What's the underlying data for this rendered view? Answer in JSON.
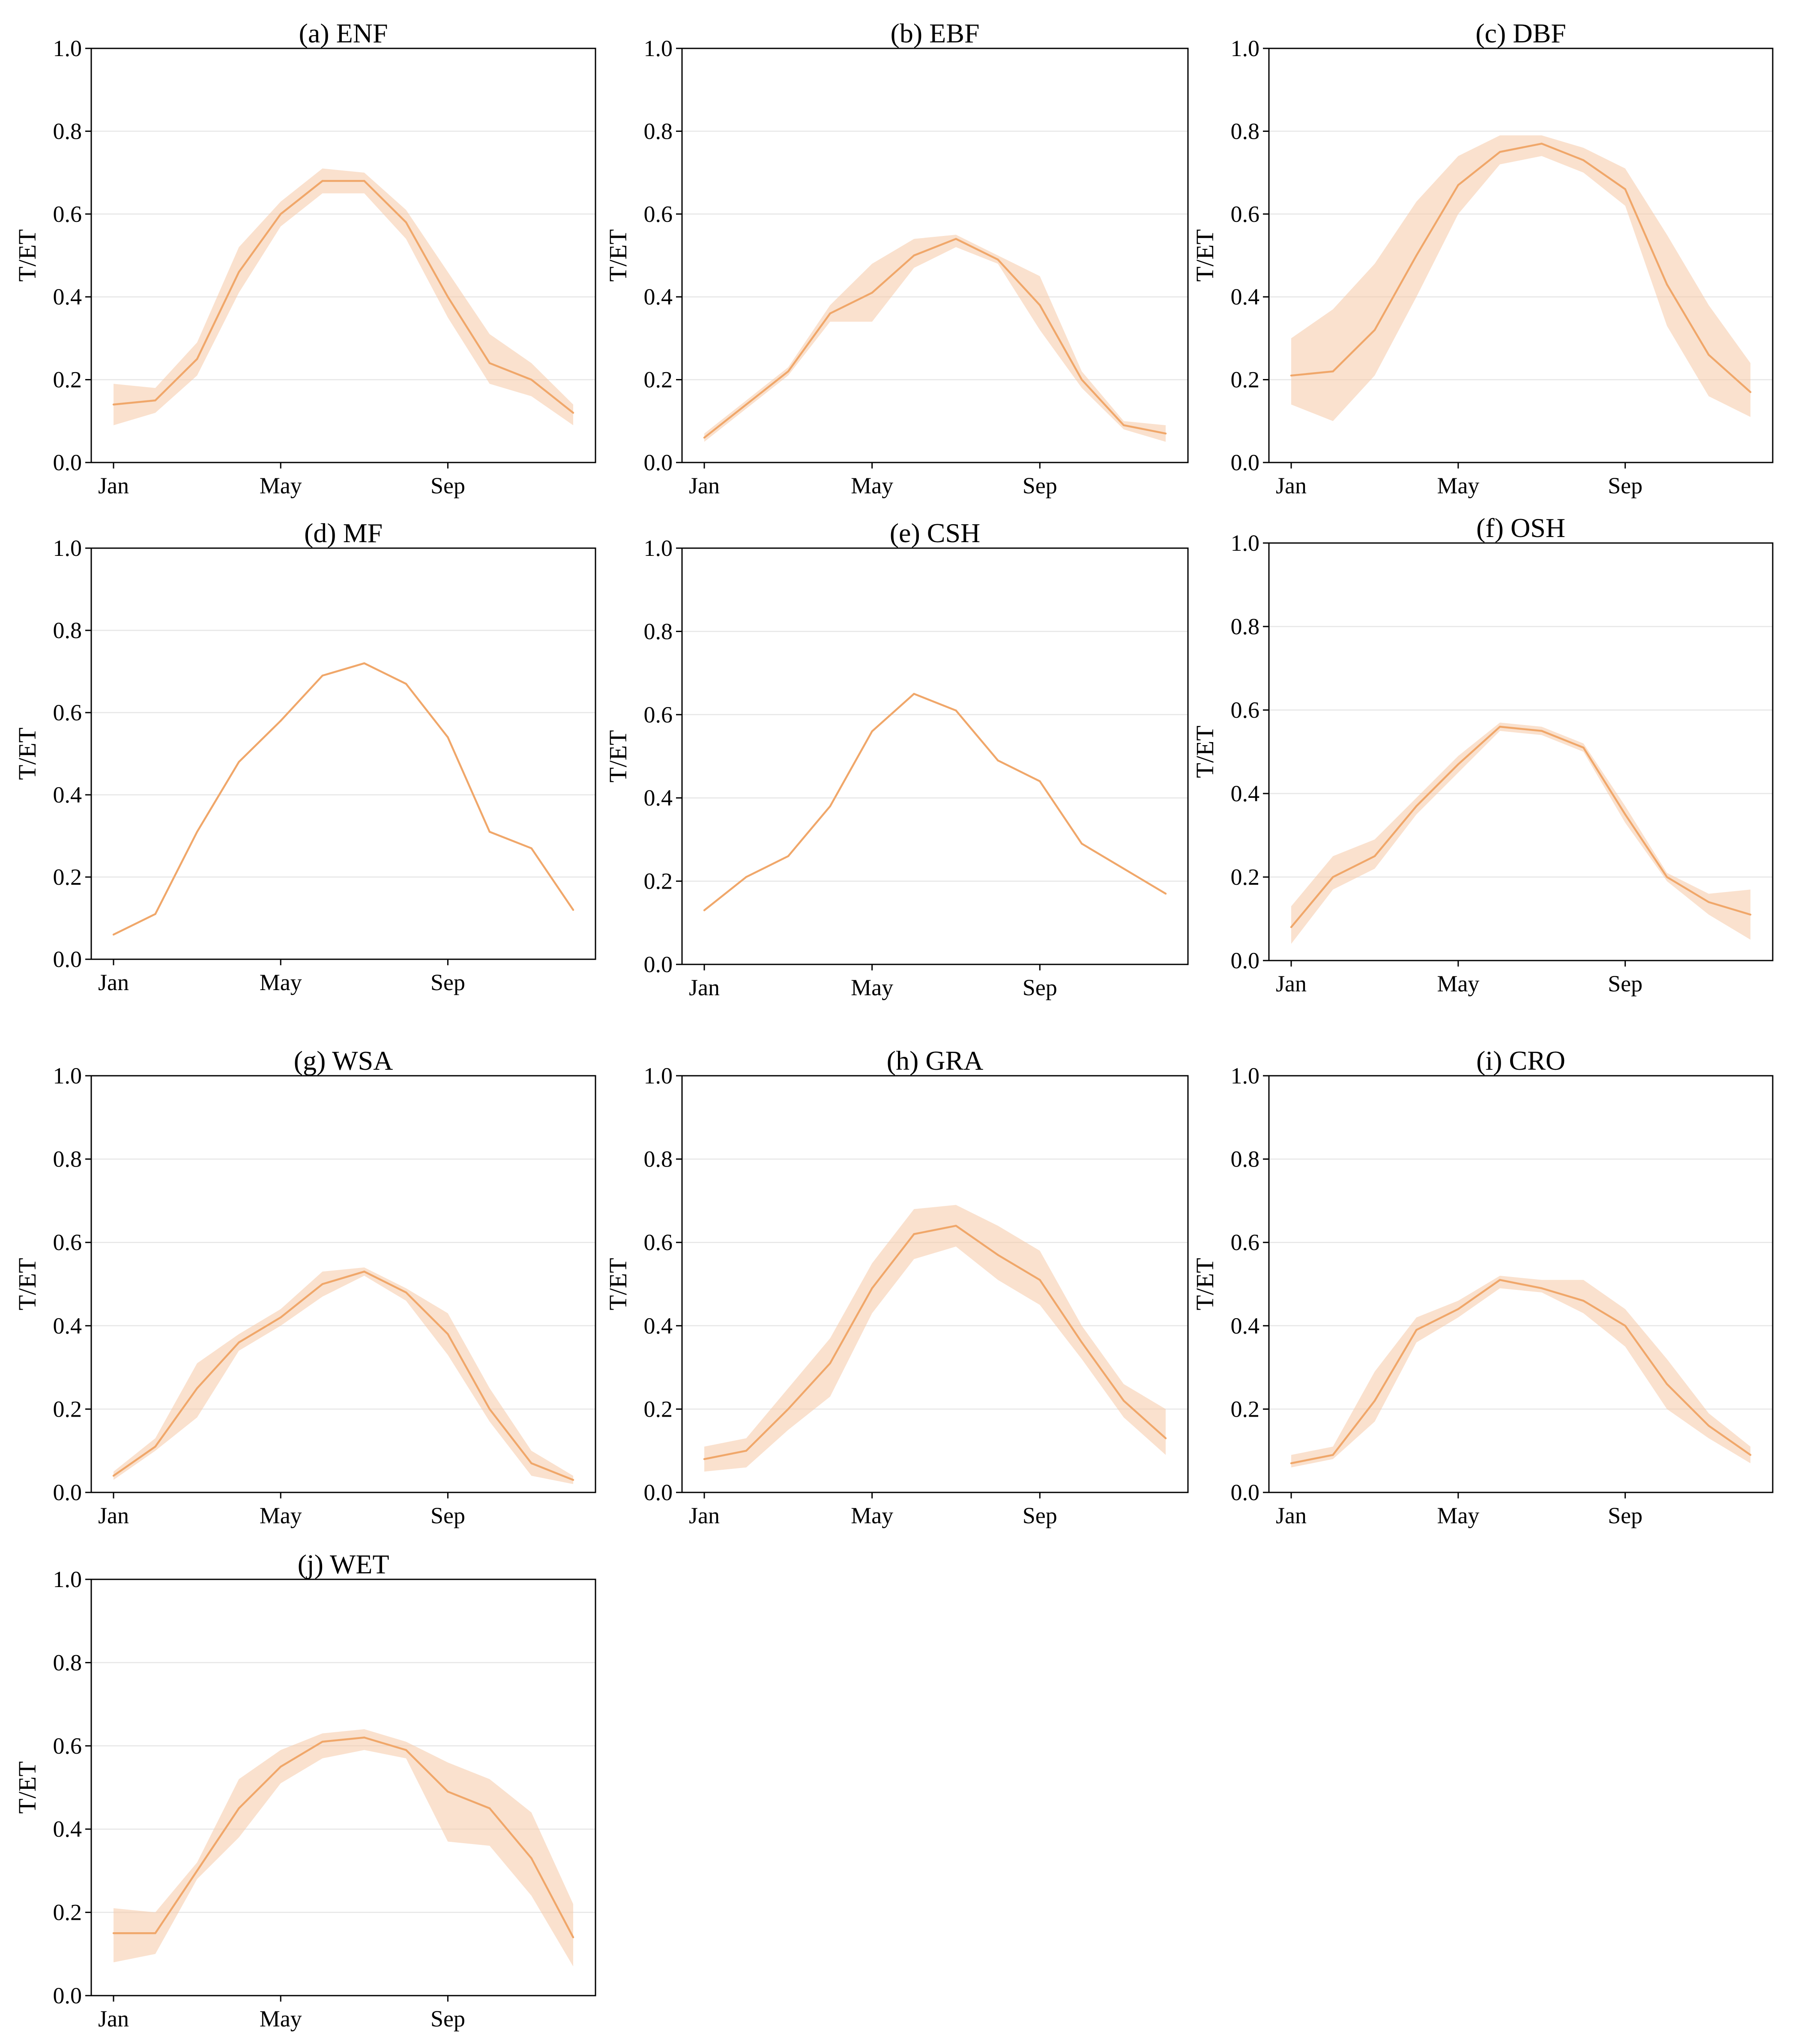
{
  "colors": {
    "line": "#f0a76a",
    "band": "#f6c9a6",
    "band_opacity": 0.55,
    "grid": "#e6e6e6"
  },
  "chart_data": [
    {
      "type": "line",
      "title": "(a) ENF",
      "ylabel": "T/ET",
      "ylim": [
        0,
        1
      ],
      "grid": "horizontal",
      "x": [
        1,
        2,
        3,
        4,
        5,
        6,
        7,
        8,
        9,
        10,
        11,
        12
      ],
      "x_ticks": [
        {
          "value": 1,
          "label": "Jan"
        },
        {
          "value": 5,
          "label": "May"
        },
        {
          "value": 9,
          "label": "Sep"
        }
      ],
      "y_ticks": [
        "0.0",
        "0.2",
        "0.4",
        "0.6",
        "0.8",
        "1.0"
      ],
      "series": [
        {
          "values": [
            0.14,
            0.15,
            0.25,
            0.46,
            0.6,
            0.68,
            0.68,
            0.58,
            0.4,
            0.24,
            0.2,
            0.12
          ],
          "lower": [
            0.09,
            0.12,
            0.21,
            0.41,
            0.57,
            0.65,
            0.65,
            0.54,
            0.35,
            0.19,
            0.16,
            0.09
          ],
          "upper": [
            0.19,
            0.18,
            0.29,
            0.52,
            0.63,
            0.71,
            0.7,
            0.61,
            0.46,
            0.31,
            0.24,
            0.14
          ]
        }
      ]
    },
    {
      "type": "line",
      "title": "(b) EBF",
      "ylabel": "T/ET",
      "ylim": [
        0,
        1
      ],
      "grid": "horizontal",
      "x": [
        1,
        2,
        3,
        4,
        5,
        6,
        7,
        8,
        9,
        10,
        11,
        12
      ],
      "x_ticks": [
        {
          "value": 1,
          "label": "Jan"
        },
        {
          "value": 5,
          "label": "May"
        },
        {
          "value": 9,
          "label": "Sep"
        }
      ],
      "y_ticks": [
        "0.0",
        "0.2",
        "0.4",
        "0.6",
        "0.8",
        "1.0"
      ],
      "series": [
        {
          "values": [
            0.06,
            0.14,
            0.22,
            0.36,
            0.41,
            0.5,
            0.54,
            0.49,
            0.38,
            0.2,
            0.09,
            0.07
          ],
          "lower": [
            0.05,
            0.13,
            0.21,
            0.34,
            0.34,
            0.47,
            0.52,
            0.48,
            0.32,
            0.18,
            0.08,
            0.05
          ],
          "upper": [
            0.07,
            0.15,
            0.23,
            0.38,
            0.48,
            0.54,
            0.55,
            0.5,
            0.45,
            0.22,
            0.1,
            0.09
          ]
        }
      ]
    },
    {
      "type": "line",
      "title": "(c) DBF",
      "ylabel": "T/ET",
      "ylim": [
        0,
        1
      ],
      "grid": "horizontal",
      "x": [
        1,
        2,
        3,
        4,
        5,
        6,
        7,
        8,
        9,
        10,
        11,
        12
      ],
      "x_ticks": [
        {
          "value": 1,
          "label": "Jan"
        },
        {
          "value": 5,
          "label": "May"
        },
        {
          "value": 9,
          "label": "Sep"
        }
      ],
      "y_ticks": [
        "0.0",
        "0.2",
        "0.4",
        "0.6",
        "0.8",
        "1.0"
      ],
      "series": [
        {
          "values": [
            0.21,
            0.22,
            0.32,
            0.5,
            0.67,
            0.75,
            0.77,
            0.73,
            0.66,
            0.43,
            0.26,
            0.17
          ],
          "lower": [
            0.14,
            0.1,
            0.21,
            0.4,
            0.6,
            0.72,
            0.74,
            0.7,
            0.62,
            0.33,
            0.16,
            0.11
          ],
          "upper": [
            0.3,
            0.37,
            0.48,
            0.63,
            0.74,
            0.79,
            0.79,
            0.76,
            0.71,
            0.55,
            0.38,
            0.24
          ]
        }
      ]
    },
    {
      "type": "line",
      "title": "(d) MF",
      "ylabel": "T/ET",
      "ylim": [
        0,
        1
      ],
      "grid": "horizontal",
      "x": [
        1,
        2,
        3,
        4,
        5,
        6,
        7,
        8,
        9,
        10,
        11,
        12
      ],
      "x_ticks": [
        {
          "value": 1,
          "label": "Jan"
        },
        {
          "value": 5,
          "label": "May"
        },
        {
          "value": 9,
          "label": "Sep"
        }
      ],
      "y_ticks": [
        "0.0",
        "0.2",
        "0.4",
        "0.6",
        "0.8",
        "1.0"
      ],
      "series": [
        {
          "values": [
            0.06,
            0.11,
            0.31,
            0.48,
            0.58,
            0.69,
            0.72,
            0.67,
            0.54,
            0.31,
            0.27,
            0.12
          ]
        }
      ]
    },
    {
      "type": "line",
      "title": "(e) CSH",
      "ylabel": "T/ET",
      "ylim": [
        0,
        1
      ],
      "grid": "horizontal",
      "x": [
        1,
        2,
        3,
        4,
        5,
        6,
        7,
        8,
        9,
        10,
        11,
        12
      ],
      "x_ticks": [
        {
          "value": 1,
          "label": "Jan"
        },
        {
          "value": 5,
          "label": "May"
        },
        {
          "value": 9,
          "label": "Sep"
        }
      ],
      "y_ticks": [
        "0.0",
        "0.2",
        "0.4",
        "0.6",
        "0.8",
        "1.0"
      ],
      "series": [
        {
          "values": [
            0.13,
            0.21,
            0.26,
            0.38,
            0.56,
            0.65,
            0.61,
            0.49,
            0.44,
            0.29,
            0.23,
            0.17
          ]
        }
      ]
    },
    {
      "type": "line",
      "title": "(f) OSH",
      "ylabel": "T/ET",
      "ylim": [
        0,
        1
      ],
      "grid": "horizontal",
      "x": [
        1,
        2,
        3,
        4,
        5,
        6,
        7,
        8,
        9,
        10,
        11,
        12
      ],
      "x_ticks": [
        {
          "value": 1,
          "label": "Jan"
        },
        {
          "value": 5,
          "label": "May"
        },
        {
          "value": 9,
          "label": "Sep"
        }
      ],
      "y_ticks": [
        "0.0",
        "0.2",
        "0.4",
        "0.6",
        "0.8",
        "1.0"
      ],
      "series": [
        {
          "values": [
            0.08,
            0.2,
            0.25,
            0.37,
            0.47,
            0.56,
            0.55,
            0.51,
            0.35,
            0.2,
            0.14,
            0.11
          ],
          "lower": [
            0.04,
            0.17,
            0.22,
            0.35,
            0.45,
            0.55,
            0.54,
            0.5,
            0.33,
            0.19,
            0.11,
            0.05
          ],
          "upper": [
            0.13,
            0.25,
            0.29,
            0.39,
            0.49,
            0.57,
            0.56,
            0.52,
            0.37,
            0.21,
            0.16,
            0.17
          ]
        }
      ]
    },
    {
      "type": "line",
      "title": "(g) WSA",
      "ylabel": "T/ET",
      "ylim": [
        0,
        1
      ],
      "grid": "horizontal",
      "x": [
        1,
        2,
        3,
        4,
        5,
        6,
        7,
        8,
        9,
        10,
        11,
        12
      ],
      "x_ticks": [
        {
          "value": 1,
          "label": "Jan"
        },
        {
          "value": 5,
          "label": "May"
        },
        {
          "value": 9,
          "label": "Sep"
        }
      ],
      "y_ticks": [
        "0.0",
        "0.2",
        "0.4",
        "0.6",
        "0.8",
        "1.0"
      ],
      "series": [
        {
          "values": [
            0.04,
            0.11,
            0.25,
            0.36,
            0.42,
            0.5,
            0.53,
            0.48,
            0.38,
            0.2,
            0.07,
            0.03
          ],
          "lower": [
            0.03,
            0.1,
            0.18,
            0.34,
            0.4,
            0.47,
            0.52,
            0.46,
            0.33,
            0.17,
            0.04,
            0.02
          ],
          "upper": [
            0.05,
            0.13,
            0.31,
            0.38,
            0.44,
            0.53,
            0.54,
            0.49,
            0.43,
            0.25,
            0.1,
            0.04
          ]
        }
      ]
    },
    {
      "type": "line",
      "title": "(h) GRA",
      "ylabel": "T/ET",
      "ylim": [
        0,
        1
      ],
      "grid": "horizontal",
      "x": [
        1,
        2,
        3,
        4,
        5,
        6,
        7,
        8,
        9,
        10,
        11,
        12
      ],
      "x_ticks": [
        {
          "value": 1,
          "label": "Jan"
        },
        {
          "value": 5,
          "label": "May"
        },
        {
          "value": 9,
          "label": "Sep"
        }
      ],
      "y_ticks": [
        "0.0",
        "0.2",
        "0.4",
        "0.6",
        "0.8",
        "1.0"
      ],
      "series": [
        {
          "values": [
            0.08,
            0.1,
            0.2,
            0.31,
            0.49,
            0.62,
            0.64,
            0.57,
            0.51,
            0.36,
            0.22,
            0.13
          ],
          "lower": [
            0.05,
            0.06,
            0.15,
            0.23,
            0.43,
            0.56,
            0.59,
            0.51,
            0.45,
            0.32,
            0.18,
            0.09
          ],
          "upper": [
            0.11,
            0.13,
            0.25,
            0.37,
            0.55,
            0.68,
            0.69,
            0.64,
            0.58,
            0.4,
            0.26,
            0.2
          ]
        }
      ]
    },
    {
      "type": "line",
      "title": "(i) CRO",
      "ylabel": "T/ET",
      "ylim": [
        0,
        1
      ],
      "grid": "horizontal",
      "x": [
        1,
        2,
        3,
        4,
        5,
        6,
        7,
        8,
        9,
        10,
        11,
        12
      ],
      "x_ticks": [
        {
          "value": 1,
          "label": "Jan"
        },
        {
          "value": 5,
          "label": "May"
        },
        {
          "value": 9,
          "label": "Sep"
        }
      ],
      "y_ticks": [
        "0.0",
        "0.2",
        "0.4",
        "0.6",
        "0.8",
        "1.0"
      ],
      "series": [
        {
          "values": [
            0.07,
            0.09,
            0.22,
            0.39,
            0.44,
            0.51,
            0.49,
            0.46,
            0.4,
            0.26,
            0.16,
            0.09
          ],
          "lower": [
            0.06,
            0.08,
            0.17,
            0.36,
            0.42,
            0.49,
            0.48,
            0.43,
            0.35,
            0.2,
            0.13,
            0.07
          ],
          "upper": [
            0.09,
            0.11,
            0.29,
            0.42,
            0.46,
            0.52,
            0.51,
            0.51,
            0.44,
            0.32,
            0.19,
            0.11
          ]
        }
      ]
    },
    {
      "type": "line",
      "title": "(j) WET",
      "ylabel": "T/ET",
      "ylim": [
        0,
        1
      ],
      "grid": "horizontal",
      "x": [
        1,
        2,
        3,
        4,
        5,
        6,
        7,
        8,
        9,
        10,
        11,
        12
      ],
      "x_ticks": [
        {
          "value": 1,
          "label": "Jan"
        },
        {
          "value": 5,
          "label": "May"
        },
        {
          "value": 9,
          "label": "Sep"
        }
      ],
      "y_ticks": [
        "0.0",
        "0.2",
        "0.4",
        "0.6",
        "0.8",
        "1.0"
      ],
      "series": [
        {
          "values": [
            0.15,
            0.15,
            0.3,
            0.45,
            0.55,
            0.61,
            0.62,
            0.59,
            0.49,
            0.45,
            0.33,
            0.14
          ],
          "lower": [
            0.08,
            0.1,
            0.28,
            0.38,
            0.51,
            0.57,
            0.59,
            0.57,
            0.37,
            0.36,
            0.24,
            0.07
          ],
          "upper": [
            0.21,
            0.2,
            0.32,
            0.52,
            0.59,
            0.63,
            0.64,
            0.61,
            0.56,
            0.52,
            0.44,
            0.22
          ]
        }
      ]
    }
  ]
}
